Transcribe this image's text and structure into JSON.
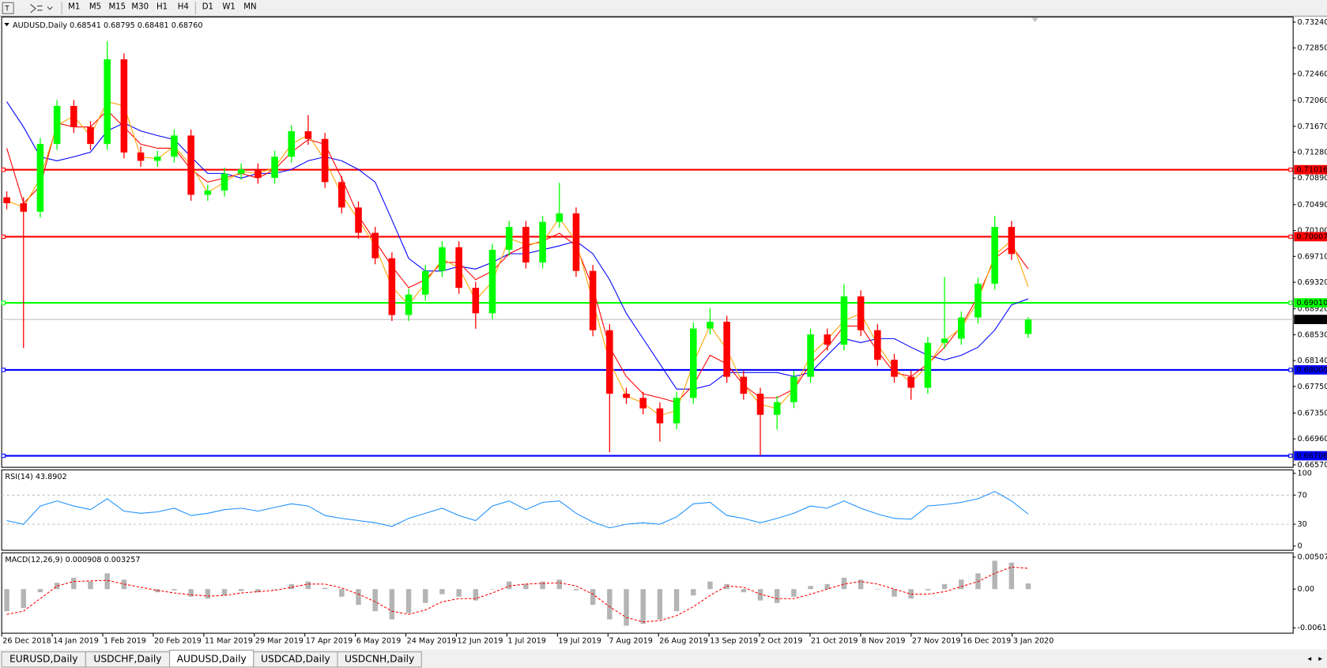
{
  "toolbar": [
    "M1",
    "M5",
    "M15",
    "M30",
    "H1",
    "H4",
    "D1",
    "W1",
    "MN"
  ],
  "tabs": [
    "EURUSD,Daily",
    "USDCHF,Daily",
    "AUDUSD,Daily",
    "USDCAD,Daily",
    "USDCNH,Daily"
  ],
  "active_tab": "AUDUSD,Daily",
  "chart_data": [
    {
      "type": "candlestick",
      "title": "AUDUSD,Daily  0.68541 0.68795 0.68481 0.68760",
      "x_labels": [
        "26 Dec 2018",
        "14 Jan 2019",
        "1 Feb 2019",
        "20 Feb 2019",
        "11 Mar 2019",
        "29 Mar 2019",
        "17 Apr 2019",
        "6 May 2019",
        "24 May 2019",
        "12 Jun 2019",
        "1 Jul 2019",
        "19 Jul 2019",
        "7 Aug 2019",
        "26 Aug 2019",
        "13 Sep 2019",
        "2 Oct 2019",
        "21 Oct 2019",
        "8 Nov 2019",
        "27 Nov 2019",
        "16 Dec 2019",
        "3 Jan 2020"
      ],
      "open": [
        0.706,
        0.70511,
        0.70383,
        0.71404,
        0.71977,
        0.71659,
        0.71404,
        0.72679,
        0.71276,
        0.7115,
        0.71212,
        0.71531,
        0.70638,
        0.70702,
        0.70957,
        0.71021,
        0.70893,
        0.71212,
        0.71595,
        0.7148,
        0.7083,
        0.70447,
        0.70065,
        0.69682,
        0.68827,
        0.69134,
        0.69491,
        0.69848,
        0.69236,
        0.68853,
        0.69809,
        0.70154,
        0.69618,
        0.7023,
        0.70358,
        0.69491,
        0.68598,
        0.67641,
        0.67578,
        0.6742,
        0.67195,
        0.67578,
        0.68623,
        0.68725,
        0.67896,
        0.67641,
        0.67323,
        0.67514,
        0.67896,
        0.68534,
        0.6838,
        0.69108,
        0.68598,
        0.68152,
        0.67896,
        0.67731,
        0.68407,
        0.6847,
        0.68789,
        0.69299,
        0.70154,
        0.68541
      ],
      "high": [
        0.7069,
        0.70601,
        0.71494,
        0.72067,
        0.72067,
        0.71749,
        0.7295,
        0.72769,
        0.71366,
        0.71302,
        0.71621,
        0.71621,
        0.70792,
        0.71047,
        0.71111,
        0.71111,
        0.71302,
        0.71685,
        0.7184,
        0.7157,
        0.7092,
        0.70537,
        0.70155,
        0.69772,
        0.69224,
        0.69581,
        0.69938,
        0.69938,
        0.69326,
        0.69899,
        0.70244,
        0.70244,
        0.7032,
        0.7082,
        0.70448,
        0.69581,
        0.68688,
        0.67731,
        0.67668,
        0.6751,
        0.67668,
        0.68713,
        0.6893,
        0.68815,
        0.67986,
        0.67731,
        0.67604,
        0.67986,
        0.68624,
        0.68624,
        0.6929,
        0.69198,
        0.68688,
        0.68242,
        0.67986,
        0.68497,
        0.694,
        0.68879,
        0.69389,
        0.7032,
        0.70244,
        0.68795
      ],
      "low": [
        0.70421,
        0.6833,
        0.70293,
        0.71314,
        0.71569,
        0.71314,
        0.71314,
        0.71186,
        0.7106,
        0.7106,
        0.71122,
        0.70548,
        0.70548,
        0.70612,
        0.70867,
        0.70803,
        0.70803,
        0.71122,
        0.7139,
        0.7074,
        0.70357,
        0.69975,
        0.69592,
        0.68737,
        0.68737,
        0.69044,
        0.69401,
        0.69146,
        0.6862,
        0.68763,
        0.69719,
        0.69528,
        0.69528,
        0.7014,
        0.69401,
        0.68508,
        0.6676,
        0.67488,
        0.6733,
        0.6692,
        0.67105,
        0.67488,
        0.68533,
        0.67806,
        0.67551,
        0.6671,
        0.671,
        0.67424,
        0.67806,
        0.6829,
        0.6829,
        0.68508,
        0.68062,
        0.67806,
        0.6755,
        0.67641,
        0.68317,
        0.6838,
        0.68699,
        0.69209,
        0.69656,
        0.68481
      ],
      "close": [
        0.70511,
        0.70383,
        0.71404,
        0.71977,
        0.71659,
        0.71404,
        0.72679,
        0.71276,
        0.7115,
        0.71212,
        0.71531,
        0.70638,
        0.70702,
        0.70957,
        0.71021,
        0.70893,
        0.71212,
        0.71595,
        0.7148,
        0.7083,
        0.70447,
        0.70065,
        0.69682,
        0.68827,
        0.69134,
        0.69491,
        0.69848,
        0.69236,
        0.68853,
        0.69809,
        0.70154,
        0.69618,
        0.7023,
        0.70358,
        0.69491,
        0.68598,
        0.67641,
        0.67578,
        0.6742,
        0.67195,
        0.67578,
        0.68623,
        0.68725,
        0.67896,
        0.67641,
        0.67323,
        0.67514,
        0.67896,
        0.68534,
        0.6838,
        0.69108,
        0.68598,
        0.68152,
        0.67896,
        0.67731,
        0.68407,
        0.6847,
        0.68789,
        0.69299,
        0.70154,
        0.69746,
        0.6876
      ],
      "up_color": "#00ff00",
      "down_color": "#ff0000",
      "series": [
        {
          "color": "#0000ff",
          "values": [
            0.7204,
            0.7166,
            0.7121,
            0.7115,
            0.7121,
            0.7128,
            0.716,
            0.7172,
            0.716,
            0.7153,
            0.7147,
            0.7121,
            0.7096,
            0.7096,
            0.7089,
            0.7096,
            0.7096,
            0.7102,
            0.7115,
            0.7121,
            0.7115,
            0.7102,
            0.7083,
            0.7026,
            0.6968,
            0.6949,
            0.6949,
            0.6956,
            0.6952,
            0.6962,
            0.6975,
            0.6975,
            0.6981,
            0.6987,
            0.6994,
            0.6975,
            0.6936,
            0.6885,
            0.6847,
            0.6809,
            0.6771,
            0.6771,
            0.6777,
            0.6796,
            0.6796,
            0.6796,
            0.6796,
            0.679,
            0.6796,
            0.6822,
            0.6847,
            0.6841,
            0.6847,
            0.6847,
            0.6834,
            0.6822,
            0.6815,
            0.6822,
            0.6834,
            0.686,
            0.6898,
            0.6907
          ]
        },
        {
          "color": "#ff0000",
          "values": [
            0.7134,
            0.7051,
            0.7077,
            0.7172,
            0.7166,
            0.7166,
            0.7191,
            0.7166,
            0.714,
            0.7134,
            0.7134,
            0.7102,
            0.7083,
            0.7089,
            0.7096,
            0.7089,
            0.7102,
            0.7128,
            0.7147,
            0.714,
            0.7089,
            0.7032,
            0.6994,
            0.6956,
            0.6924,
            0.6936,
            0.6962,
            0.6962,
            0.6936,
            0.6949,
            0.6975,
            0.6987,
            0.6994,
            0.7006,
            0.6987,
            0.6924,
            0.6834,
            0.679,
            0.6764,
            0.6758,
            0.6751,
            0.6777,
            0.6822,
            0.6809,
            0.6777,
            0.6758,
            0.6758,
            0.6771,
            0.6809,
            0.6834,
            0.6866,
            0.6866,
            0.6828,
            0.6796,
            0.679,
            0.6809,
            0.6834,
            0.6866,
            0.6911,
            0.6968,
            0.6987,
            0.6952
          ]
        },
        {
          "color": "#ffa500",
          "values": [
            0.7055,
            0.7045,
            0.7089,
            0.7169,
            0.7182,
            0.7153,
            0.7204,
            0.7198,
            0.7121,
            0.7118,
            0.7137,
            0.7108,
            0.7067,
            0.7083,
            0.7099,
            0.7096,
            0.7105,
            0.714,
            0.7154,
            0.7116,
            0.7064,
            0.7026,
            0.6987,
            0.6925,
            0.6898,
            0.6931,
            0.6967,
            0.6954,
            0.6905,
            0.6933,
            0.6998,
            0.6989,
            0.6992,
            0.7029,
            0.6993,
            0.6904,
            0.6812,
            0.6761,
            0.675,
            0.6731,
            0.6739,
            0.681,
            0.6867,
            0.6831,
            0.6777,
            0.6748,
            0.6742,
            0.6771,
            0.6822,
            0.6846,
            0.6874,
            0.6885,
            0.6838,
            0.6802,
            0.6781,
            0.6807,
            0.6844,
            0.6863,
            0.6904,
            0.6973,
            0.6995,
            0.6925
          ]
        }
      ],
      "levels": [
        {
          "value": 0.71016,
          "label": "0.71016",
          "color": "#ff0000"
        },
        {
          "value": 0.70007,
          "label": "0.70007",
          "color": "#ff0000"
        },
        {
          "value": 0.6901,
          "label": "0.69010",
          "color": "#00ff00"
        },
        {
          "value": 0.68,
          "label": "0.68000",
          "color": "#0000ff"
        },
        {
          "value": 0.66706,
          "label": "0.66706",
          "color": "#0000ff"
        }
      ],
      "current_price": {
        "value": 0.6876,
        "label": "0.68760"
      },
      "ylim": [
        0.66532,
        0.73317
      ],
      "yticks": [
        {
          "value": 0.7324,
          "label": "0.73240"
        },
        {
          "value": 0.7285,
          "label": "0.72850"
        },
        {
          "value": 0.7246,
          "label": "0.72460"
        },
        {
          "value": 0.7206,
          "label": "0.72060"
        },
        {
          "value": 0.7167,
          "label": "0.71670"
        },
        {
          "value": 0.7128,
          "label": "0.71280"
        },
        {
          "value": 0.7089,
          "label": "0.70890"
        },
        {
          "value": 0.7049,
          "label": "0.70490"
        },
        {
          "value": 0.701,
          "label": "0.70100"
        },
        {
          "value": 0.6971,
          "label": "0.69710"
        },
        {
          "value": 0.6932,
          "label": "0.69320"
        },
        {
          "value": 0.6892,
          "label": "0.68920"
        },
        {
          "value": 0.6853,
          "label": "0.68530"
        },
        {
          "value": 0.6814,
          "label": "0.68140"
        },
        {
          "value": 0.6775,
          "label": "0.67750"
        },
        {
          "value": 0.6735,
          "label": "0.67350"
        },
        {
          "value": 0.6696,
          "label": "0.66960"
        },
        {
          "value": 0.6657,
          "label": "0.66570"
        }
      ]
    },
    {
      "type": "line",
      "title": "RSI(14) 43.8902",
      "series": [
        {
          "color": "#1e90ff",
          "values": [
            35,
            30,
            55,
            62,
            55,
            50,
            65,
            48,
            45,
            47,
            52,
            42,
            45,
            50,
            52,
            48,
            53,
            58,
            55,
            42,
            38,
            35,
            32,
            27,
            38,
            45,
            52,
            42,
            35,
            55,
            62,
            50,
            60,
            62,
            45,
            33,
            25,
            30,
            32,
            30,
            40,
            58,
            60,
            42,
            38,
            32,
            38,
            45,
            55,
            52,
            62,
            52,
            44,
            38,
            37,
            55,
            57,
            60,
            65,
            75,
            62,
            44
          ]
        }
      ],
      "levels": [
        70,
        30
      ],
      "ylim": [
        -5.8,
        104.7
      ],
      "yticks": [
        100,
        70,
        30,
        0
      ]
    },
    {
      "type": "macd",
      "title": "MACD(12,26,9) 0.000908 0.003257",
      "histogram": [
        -0.0035,
        -0.003,
        -0.0005,
        0.001,
        0.0018,
        0.0012,
        0.0025,
        0.0015,
        0.0,
        -0.0005,
        -0.0002,
        -0.0012,
        -0.0015,
        -0.001,
        -0.0003,
        -0.0005,
        0.0,
        0.0008,
        0.0012,
        0.0002,
        -0.0012,
        -0.0025,
        -0.0035,
        -0.0048,
        -0.0038,
        -0.0022,
        -0.0008,
        -0.0012,
        -0.0018,
        0.0,
        0.0012,
        0.0008,
        0.0012,
        0.0015,
        -0.0002,
        -0.0025,
        -0.0048,
        -0.0058,
        -0.0055,
        -0.0048,
        -0.0035,
        -0.001,
        0.0012,
        0.0008,
        -0.0005,
        -0.0018,
        -0.0022,
        -0.0012,
        0.0005,
        0.0008,
        0.0018,
        0.0015,
        0.0,
        -0.0012,
        -0.0015,
        -0.0002,
        0.0008,
        0.0015,
        0.0025,
        0.0045,
        0.0042,
        0.0009
      ],
      "signal": [
        -0.004,
        -0.0035,
        -0.0015,
        0.0005,
        0.0012,
        0.0013,
        0.0014,
        0.0008,
        0.0003,
        -0.0002,
        -0.0006,
        -0.0009,
        -0.0011,
        -0.001,
        -0.0006,
        -0.0004,
        -0.0002,
        0.0003,
        0.0008,
        0.0008,
        0.0002,
        -0.0008,
        -0.002,
        -0.0035,
        -0.004,
        -0.0033,
        -0.002,
        -0.0015,
        -0.0015,
        -0.0006,
        0.0005,
        0.0008,
        0.0009,
        0.001,
        0.0005,
        -0.0008,
        -0.0028,
        -0.0045,
        -0.0052,
        -0.005,
        -0.0042,
        -0.0028,
        -0.001,
        0.0005,
        0.0003,
        -0.0008,
        -0.0015,
        -0.0015,
        -0.0008,
        0.0,
        0.0008,
        0.0012,
        0.0008,
        0.0,
        -0.0008,
        -0.0008,
        -0.0004,
        0.0004,
        0.0012,
        0.0025,
        0.0035,
        0.0033
      ],
      "hist_color": "#b4b4b4",
      "signal_color": "#ff0000",
      "ylim": [
        -0.007,
        0.00576
      ],
      "yticks": [
        0.005076,
        {
          "value": 0,
          "label": "0.00"
        },
        -0.006146
      ]
    }
  ]
}
